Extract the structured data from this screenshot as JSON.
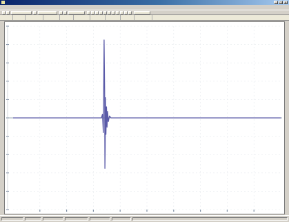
{
  "chart_data": {
    "type": "line",
    "x_range": [
      0,
      1000
    ],
    "y_range": [
      -1,
      1
    ],
    "grid": true,
    "baseline": 0,
    "series": [
      {
        "color": "#5a5aa8",
        "x": [
          0,
          330,
          334,
          337,
          339,
          340,
          342,
          343,
          344,
          345,
          347,
          349,
          351,
          353,
          356,
          360,
          366,
          1000
        ],
        "y": [
          0,
          0,
          0.04,
          -0.16,
          0.46,
          0.85,
          0.3,
          -0.55,
          -0.32,
          0.22,
          -0.18,
          0.12,
          -0.1,
          0.07,
          -0.04,
          0.02,
          0,
          0
        ]
      }
    ]
  },
  "colors": {
    "trace": "#5a5aa8",
    "baseline": "#9aa8b0",
    "grid": "#e6eaee",
    "axis_tick": "#7a8aa0",
    "title_bar": "#0a246a"
  },
  "icons": [
    "app-icon",
    "minimize-icon",
    "maximize-icon",
    "close-icon"
  ]
}
